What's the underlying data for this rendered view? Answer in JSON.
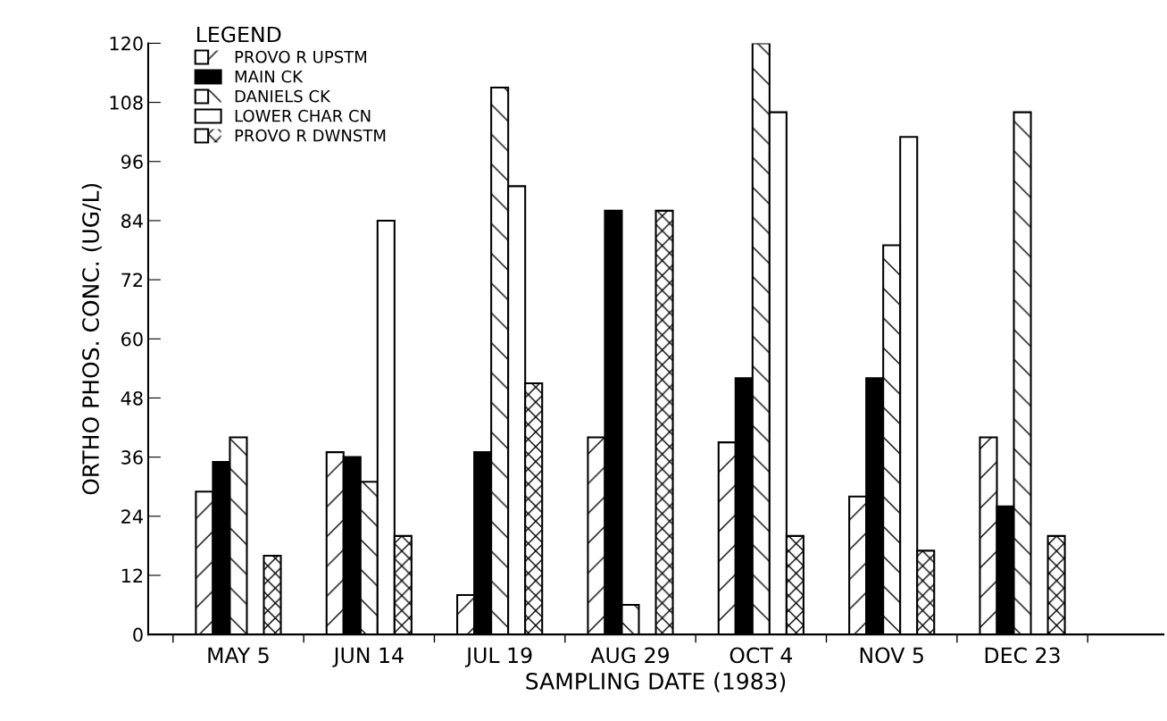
{
  "chart_data": {
    "type": "bar",
    "xlabel": "SAMPLING DATE (1983)",
    "ylabel": "ORTHO PHOS. CONC. (UG/L)",
    "legend_title": "LEGEND",
    "legend": "top left",
    "categories": [
      "MAY 5",
      "JUN 14",
      "JUL 19",
      "AUG 29",
      "OCT 4",
      "NOV 5",
      "DEC 23"
    ],
    "series": [
      {
        "name": "PROVO R UPSTM",
        "color": "#ffffff",
        "values": [
          29,
          37,
          8,
          40,
          39,
          28,
          40
        ]
      },
      {
        "name": "MAIN CK",
        "color": "#000000",
        "values": [
          35,
          36,
          37,
          86,
          52,
          52,
          26
        ]
      },
      {
        "name": "DANIELS CK",
        "color": "#ffffff",
        "values": [
          40,
          31,
          111,
          6,
          120,
          79,
          106
        ]
      },
      {
        "name": "LOWER CHAR CN",
        "color": "#ffffff",
        "values": [
          null,
          84,
          91,
          null,
          106,
          101,
          null
        ]
      },
      {
        "name": "PROVO R DWNSTM",
        "color": "#ffffff",
        "values": [
          16,
          20,
          51,
          86,
          20,
          17,
          20
        ]
      }
    ],
    "ylim": [
      0,
      120
    ],
    "yticks": [
      0,
      12,
      24,
      36,
      48,
      60,
      72,
      84,
      96,
      108,
      120
    ],
    "grid": false
  }
}
